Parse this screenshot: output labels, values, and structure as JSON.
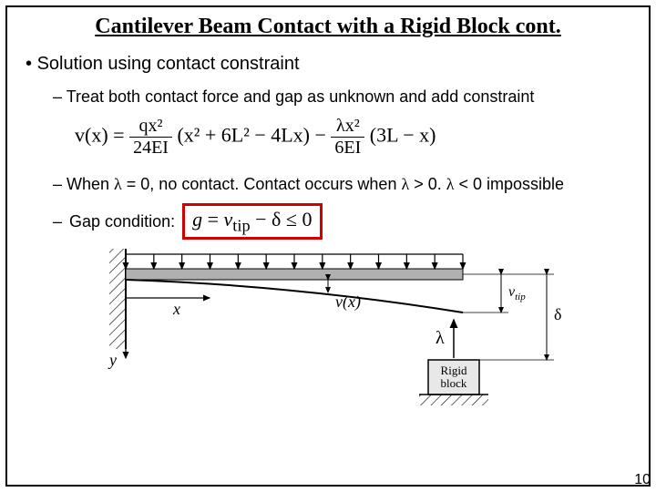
{
  "title": "Cantilever Beam Contact with a Rigid Block cont.",
  "bullets": {
    "l1": "Solution using contact constraint",
    "l2a": "Treat both contact force and gap as unknown and add constraint",
    "l2b_pre": "When ",
    "l2b_mid1": " = 0, no contact. Contact occurs when ",
    "l2b_mid2": " > 0. ",
    "l2b_post": " < 0 impossible",
    "l2c": "Gap condition:"
  },
  "formula": {
    "lhs": "v(x) = ",
    "frac1_num": "qx²",
    "frac1_den": "24EI",
    "group1": "(x² + 6L² − 4Lx) − ",
    "frac2_num": "λx²",
    "frac2_den": "6EI",
    "group2": "(3L − x)"
  },
  "gap_eq": "g = v_tip − δ ≤ 0",
  "diagram": {
    "block_label": "Rigid\nblock",
    "x_label": "x",
    "y_label": "y",
    "v_label": "v(x)",
    "vtip_label": "v_tip",
    "delta_label": "δ",
    "lambda_label": "λ",
    "beam_color": "#b0b0b0",
    "arrow_color": "#000000",
    "wall_hatch_color": "#000000",
    "block_fill": "#e8e8e8",
    "n_load_arrows": 13
  },
  "page_number": "10",
  "lambda_glyph": "λ"
}
